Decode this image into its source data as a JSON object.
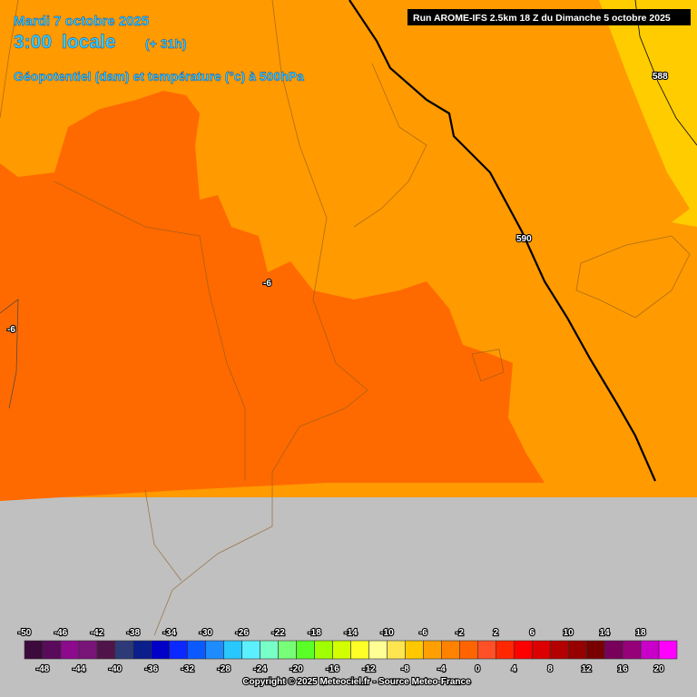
{
  "header": {
    "date": "Mardi 7 octobre 2025",
    "time": "3:00",
    "time_suffix": "locale",
    "lead": "(+ 31h)",
    "parameter": "Géopotentiel (dam) et température (°c) à 500hPa",
    "run": "Run AROME-IFS 2.5km 18 Z du Dimanche 5 octobre 2025"
  },
  "contour_labels": {
    "geopotential": [
      "588",
      "590"
    ],
    "temperature": [
      "-6",
      "-6"
    ]
  },
  "legend": {
    "labels": [
      -50,
      -48,
      -46,
      -44,
      -42,
      -40,
      -38,
      -36,
      -34,
      -32,
      -30,
      -28,
      -26,
      -24,
      -22,
      -20,
      -18,
      -16,
      -14,
      -12,
      -10,
      -8,
      -6,
      -4,
      -2,
      0,
      2,
      4,
      6,
      8,
      10,
      12,
      14,
      16,
      18,
      20
    ],
    "colors": [
      "#3c0a3c",
      "#5a0a5a",
      "#8c0a8c",
      "#781478",
      "#50144a",
      "#2e3a78",
      "#0a1e8c",
      "#0000c8",
      "#0a28ff",
      "#0a5aff",
      "#1e8cff",
      "#28c8ff",
      "#5af0ff",
      "#78ffc8",
      "#78ff78",
      "#5aff28",
      "#a0ff00",
      "#d2ff00",
      "#ffff28",
      "#ffff96",
      "#ffe650",
      "#ffc800",
      "#ffa000",
      "#ff8200",
      "#ff6400",
      "#ff5028",
      "#ff2800",
      "#ff0000",
      "#dc0000",
      "#b40000",
      "#960000",
      "#780000",
      "#78005a",
      "#960078",
      "#c800c8",
      "#ff00ff"
    ]
  },
  "footer": {
    "copyright": "Copyright © 2025 Meteociel.fr - Source Meteo-France"
  }
}
